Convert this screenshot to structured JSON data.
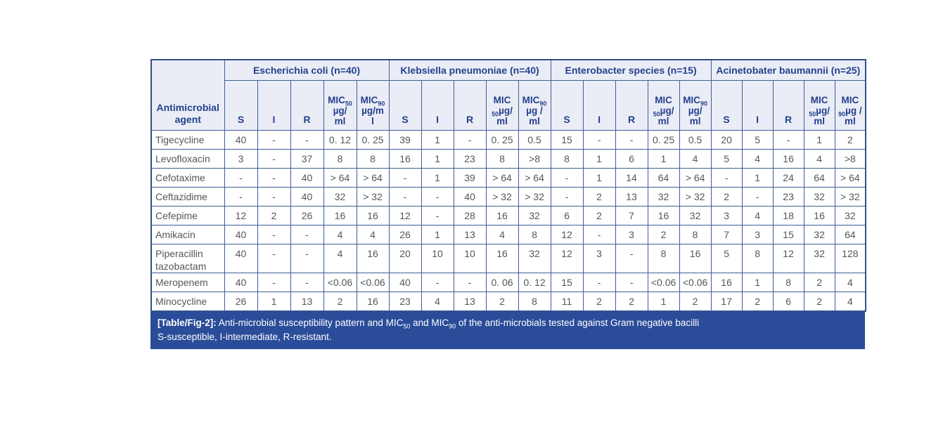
{
  "colors": {
    "header_bg": "#ebedf6",
    "header_text": "#24418e",
    "grid_border": "#3c5e95",
    "caption_bg": "#2a4c99",
    "caption_text": "#ffffff",
    "data_text": "#54565a"
  },
  "table": {
    "corner_header": "Antimicrobial\nagent",
    "sub_headers": [
      "S",
      "I",
      "R"
    ],
    "groups": [
      {
        "label": "Escherichia coli (n=40)",
        "mic50": "MIC~50~\nµg/\nml",
        "mic90": "MIC~90~\nµg/m\nl"
      },
      {
        "label": "Klebsiella pneumoniae (n=40)",
        "mic50": "MIC\n~50~µg/\nml",
        "mic90": "MIC~90~\nµg /\nml"
      },
      {
        "label": "Enterobacter species (n=15)",
        "mic50": "MIC\n~50~µg/\nml",
        "mic90": "MIC~90~\nµg/\nml"
      },
      {
        "label": "Acinetobater baumannii (n=25)",
        "mic50": "MIC\n~50~µg/\nml",
        "mic90": "MIC\n~90~µg /\nml"
      }
    ],
    "rows": [
      {
        "agent": "Tigecycline",
        "values": [
          "40",
          "-",
          "-",
          "0. 12",
          "0. 25",
          "39",
          "1",
          "-",
          "0. 25",
          "0.5",
          "15",
          "-",
          "-",
          "0. 25",
          "0.5",
          "20",
          "5",
          "-",
          "1",
          "2"
        ]
      },
      {
        "agent": "Levofloxacin",
        "values": [
          "3",
          "-",
          "37",
          "8",
          "8",
          "16",
          "1",
          "23",
          "8",
          ">8",
          "8",
          "1",
          "6",
          "1",
          "4",
          "5",
          "4",
          "16",
          "4",
          ">8"
        ]
      },
      {
        "agent": "Cefotaxime",
        "values": [
          "-",
          "-",
          "40",
          "> 64",
          "> 64",
          "-",
          "1",
          "39",
          "> 64",
          "> 64",
          "-",
          "1",
          "14",
          "64",
          "> 64",
          "-",
          "1",
          "24",
          "64",
          "> 64"
        ]
      },
      {
        "agent": "Ceftazidime",
        "values": [
          "-",
          "-",
          "40",
          "32",
          "> 32",
          "-",
          "-",
          "40",
          "> 32",
          "> 32",
          "-",
          "2",
          "13",
          "32",
          "> 32",
          "2",
          "-",
          "23",
          "32",
          "> 32"
        ]
      },
      {
        "agent": "Cefepime",
        "values": [
          "12",
          "2",
          "26",
          "16",
          "16",
          "12",
          "-",
          "28",
          "16",
          "32",
          "6",
          "2",
          "7",
          "16",
          "32",
          "3",
          "4",
          "18",
          "16",
          "32"
        ]
      },
      {
        "agent": "Amikacin",
        "values": [
          "40",
          "-",
          "-",
          "4",
          "4",
          "26",
          "1",
          "13",
          "4",
          "8",
          "12",
          "-",
          "3",
          "2",
          "8",
          "7",
          "3",
          "15",
          "32",
          "64"
        ]
      },
      {
        "agent": "Piperacillin tazobactam",
        "values": [
          "40",
          "-",
          "-",
          "4",
          "16",
          "20",
          "10",
          "10",
          "16",
          "32",
          "12",
          "3",
          "-",
          "8",
          "16",
          "5",
          "8",
          "12",
          "32",
          "128"
        ]
      },
      {
        "agent": "Meropenem",
        "values": [
          "40",
          "-",
          "-",
          "<0.06",
          "<0.06",
          "40",
          "-",
          "-",
          "0. 06",
          "0. 12",
          "15",
          "-",
          "-",
          "<0.06",
          "<0.06",
          "16",
          "1",
          "8",
          "2",
          "4"
        ]
      },
      {
        "agent": "Minocycline",
        "values": [
          "26",
          "1",
          "13",
          "2",
          "16",
          "23",
          "4",
          "13",
          "2",
          "8",
          "11",
          "2",
          "2",
          "1",
          "2",
          "17",
          "2",
          "6",
          "2",
          "4"
        ]
      }
    ]
  },
  "caption": {
    "tag": "[Table/Fig-2]:",
    "text": " Anti-microbial susceptibility pattern and MIC~50~ and MIC~90~ of the anti-microbials tested against Gram negative bacilli",
    "line2": "S-susceptible, I-intermediate, R-resistant."
  }
}
